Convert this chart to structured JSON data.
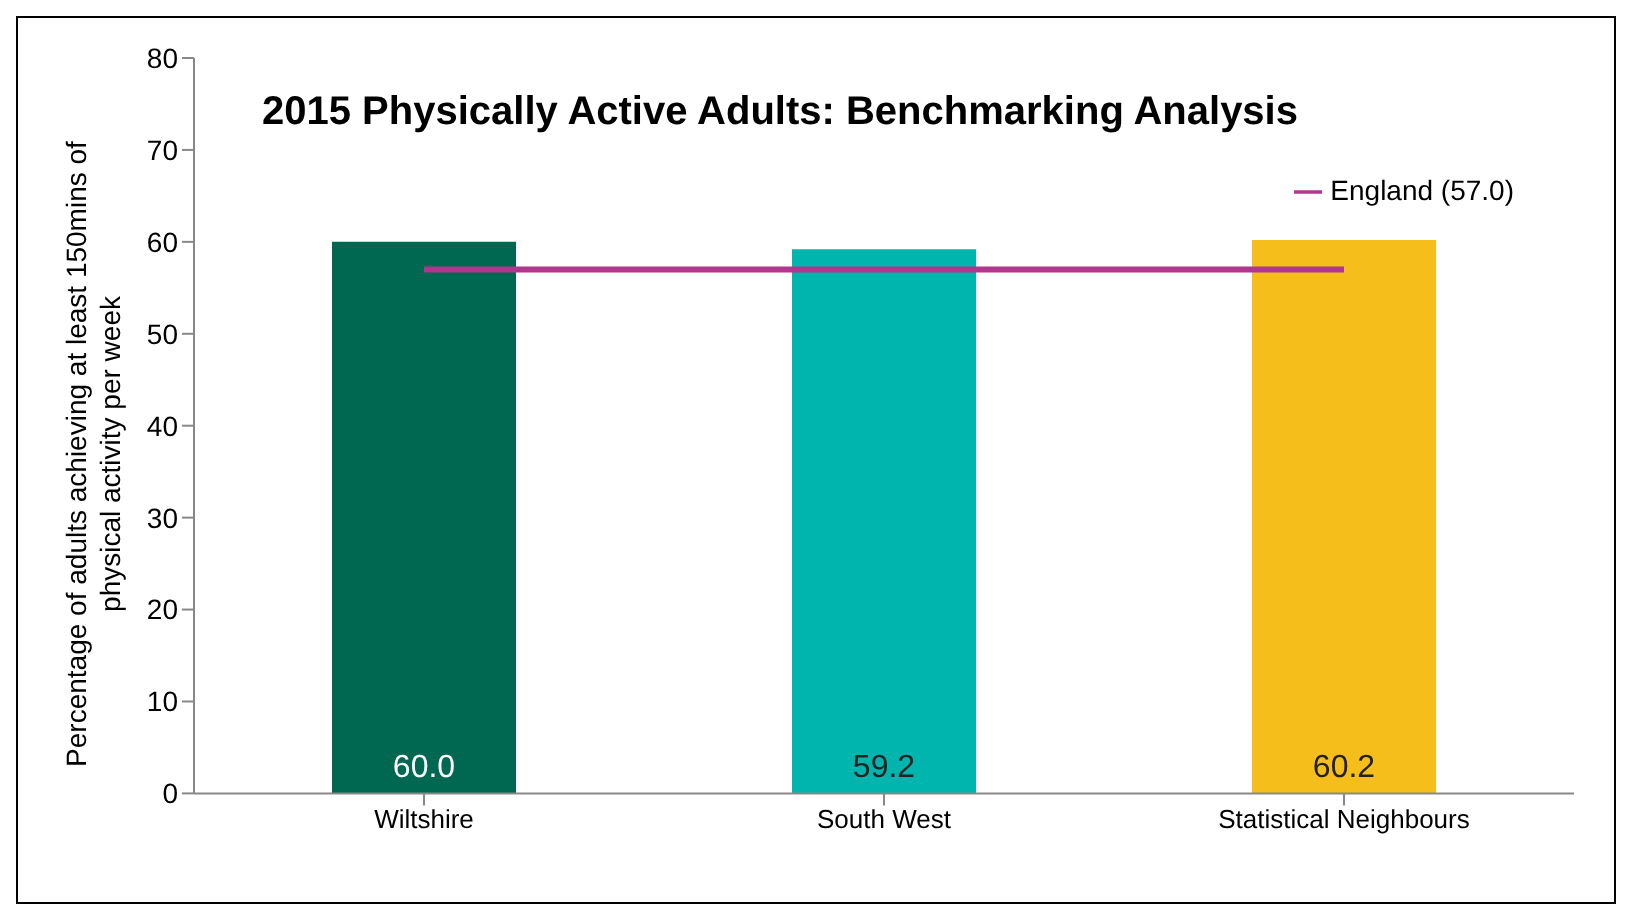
{
  "chart_data": {
    "type": "bar",
    "title": "2015 Physically Active Adults: Benchmarking Analysis",
    "ylabel": "Percentage of adults achieving at least 150mins of physical activity per week",
    "categories": [
      "Wiltshire",
      "South West",
      "Statistical Neighbours"
    ],
    "series": [
      {
        "values": [
          60.0,
          59.2,
          60.2
        ],
        "colors": [
          "#006750",
          "#00b5ad",
          "#f5be1a"
        ],
        "value_labels": [
          "60.0",
          "59.2",
          "60.2"
        ]
      },
      {
        "type": "line",
        "name": "England (57.0)",
        "color": "#b0368e",
        "values": [
          57.0,
          57.0,
          57.0
        ]
      }
    ],
    "ylim": [
      0,
      80
    ],
    "yticks": [
      0,
      10,
      20,
      30,
      40,
      50,
      60,
      70,
      80
    ],
    "legend": "top right",
    "marker": "none",
    "line_style": "solid"
  }
}
